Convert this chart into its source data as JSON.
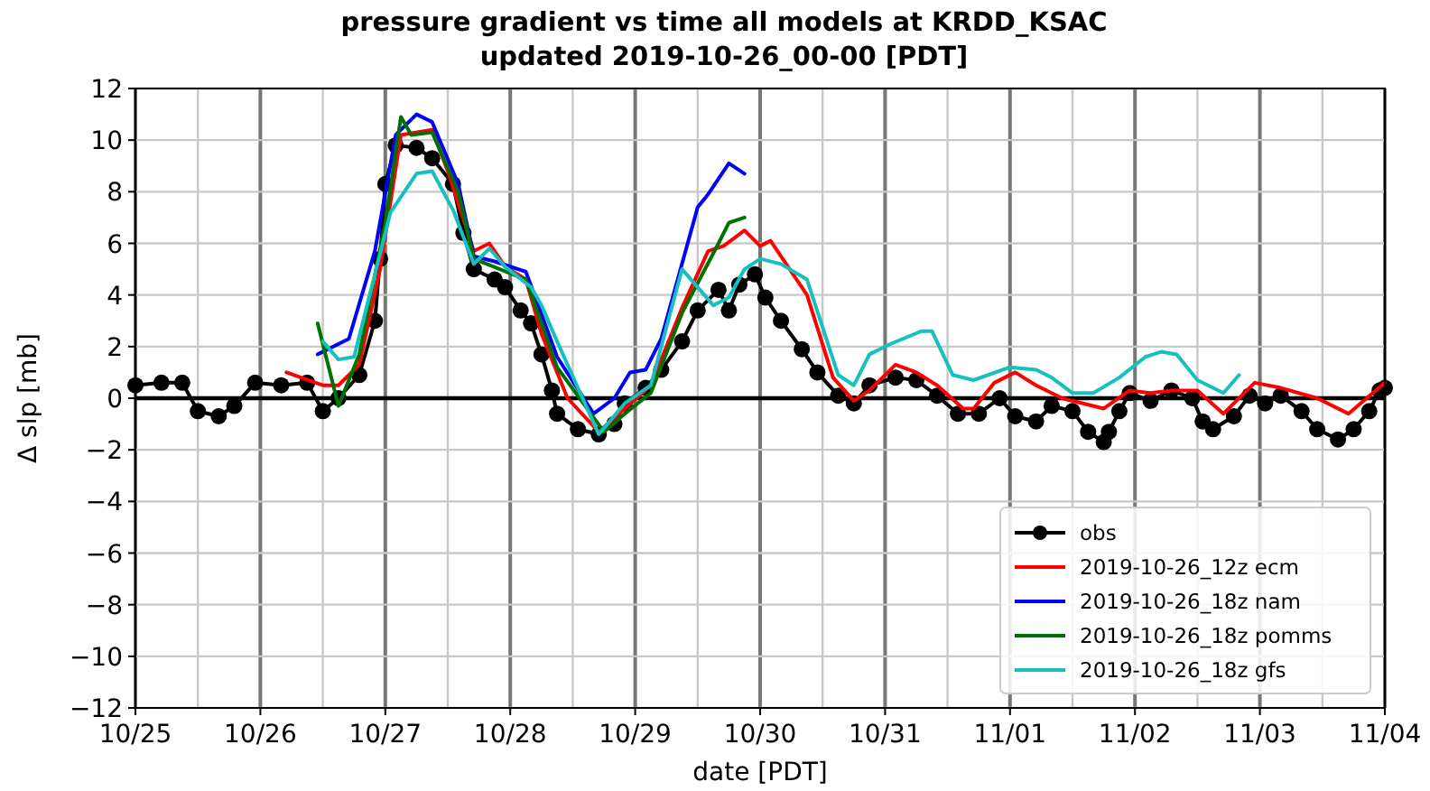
{
  "chart_data": {
    "type": "line",
    "title": "pressure gradient vs time all models at KRDD_KSAC",
    "subtitle": "updated 2019-10-26_00-00 [PDT]",
    "xlabel": "date [PDT]",
    "ylabel": "Δ slp [mb]",
    "xlim": [
      "2019-10-25T00:00",
      "2019-11-04T00:00"
    ],
    "xticks": [
      {
        "value": "2019-10-25T00:00",
        "label": "10/25"
      },
      {
        "value": "2019-10-25T12:00",
        "label": null
      },
      {
        "value": "2019-10-26T00:00",
        "label": "10/26"
      },
      {
        "value": "2019-10-26T12:00",
        "label": null
      },
      {
        "value": "2019-10-27T00:00",
        "label": "10/27"
      },
      {
        "value": "2019-10-27T12:00",
        "label": null
      },
      {
        "value": "2019-10-28T00:00",
        "label": "10/28"
      },
      {
        "value": "2019-10-28T12:00",
        "label": null
      },
      {
        "value": "2019-10-29T00:00",
        "label": "10/29"
      },
      {
        "value": "2019-10-29T12:00",
        "label": null
      },
      {
        "value": "2019-10-30T00:00",
        "label": "10/30"
      },
      {
        "value": "2019-10-30T12:00",
        "label": null
      },
      {
        "value": "2019-10-31T00:00",
        "label": "10/31"
      },
      {
        "value": "2019-10-31T12:00",
        "label": null
      },
      {
        "value": "2019-11-01T00:00",
        "label": "11/01"
      },
      {
        "value": "2019-11-01T12:00",
        "label": null
      },
      {
        "value": "2019-11-02T00:00",
        "label": "11/02"
      },
      {
        "value": "2019-11-02T12:00",
        "label": null
      },
      {
        "value": "2019-11-03T00:00",
        "label": "11/03"
      },
      {
        "value": "2019-11-03T12:00",
        "label": null
      },
      {
        "value": "2019-11-04T00:00",
        "label": "11/04"
      }
    ],
    "ylim": [
      -12,
      12
    ],
    "yticks": [
      -12,
      -10,
      -8,
      -6,
      -4,
      -2,
      0,
      2,
      4,
      6,
      8,
      10,
      12
    ],
    "grid": true,
    "legend": "bottom right",
    "ref_lines": [
      {
        "axis": "y",
        "value": 0,
        "color": "#000000"
      }
    ],
    "series": [
      {
        "name": "obs",
        "color": "#000000",
        "marker": "circle",
        "x": [
          "2019-10-25T00:00",
          "2019-10-25T05:00",
          "2019-10-25T09:00",
          "2019-10-25T12:00",
          "2019-10-25T16:00",
          "2019-10-25T19:00",
          "2019-10-25T23:00",
          "2019-10-26T04:00",
          "2019-10-26T09:00",
          "2019-10-26T12:00",
          "2019-10-26T15:00",
          "2019-10-26T19:00",
          "2019-10-26T22:00",
          "2019-10-26T23:00",
          "2019-10-27T00:00",
          "2019-10-27T02:00",
          "2019-10-27T06:00",
          "2019-10-27T09:00",
          "2019-10-27T13:00",
          "2019-10-27T15:00",
          "2019-10-27T17:00",
          "2019-10-27T21:00",
          "2019-10-27T23:00",
          "2019-10-28T02:00",
          "2019-10-28T04:00",
          "2019-10-28T06:00",
          "2019-10-28T08:00",
          "2019-10-28T09:00",
          "2019-10-28T13:00",
          "2019-10-28T17:00",
          "2019-10-28T20:00",
          "2019-10-28T22:00",
          "2019-10-29T02:00",
          "2019-10-29T05:00",
          "2019-10-29T09:00",
          "2019-10-29T12:00",
          "2019-10-29T16:00",
          "2019-10-29T18:00",
          "2019-10-29T20:00",
          "2019-10-29T23:00",
          "2019-10-30T01:00",
          "2019-10-30T04:00",
          "2019-10-30T08:00",
          "2019-10-30T11:00",
          "2019-10-30T15:00",
          "2019-10-30T18:00",
          "2019-10-30T21:00",
          "2019-10-31T02:00",
          "2019-10-31T06:00",
          "2019-10-31T10:00",
          "2019-10-31T14:00",
          "2019-10-31T18:00",
          "2019-10-31T22:00",
          "2019-11-01T01:00",
          "2019-11-01T05:00",
          "2019-11-01T08:00",
          "2019-11-01T12:00",
          "2019-11-01T15:00",
          "2019-11-01T18:00",
          "2019-11-01T19:00",
          "2019-11-01T21:00",
          "2019-11-01T23:00",
          "2019-11-02T03:00",
          "2019-11-02T07:00",
          "2019-11-02T11:00",
          "2019-11-02T13:00",
          "2019-11-02T15:00",
          "2019-11-02T19:00",
          "2019-11-02T22:00",
          "2019-11-03T01:00",
          "2019-11-03T04:00",
          "2019-11-03T08:00",
          "2019-11-03T11:00",
          "2019-11-03T15:00",
          "2019-11-03T18:00",
          "2019-11-03T21:00",
          "2019-11-03T23:00",
          "2019-11-04T00:00"
        ],
        "values": [
          0.5,
          0.6,
          0.6,
          -0.5,
          -0.7,
          -0.3,
          0.6,
          0.5,
          0.6,
          -0.5,
          0.0,
          0.9,
          3.0,
          5.4,
          8.3,
          9.8,
          9.7,
          9.3,
          8.3,
          6.4,
          5.0,
          4.6,
          4.3,
          3.4,
          2.9,
          1.7,
          0.3,
          -0.6,
          -1.2,
          -1.4,
          -1.0,
          -0.2,
          0.4,
          1.1,
          2.2,
          3.4,
          4.2,
          3.4,
          4.4,
          4.8,
          3.9,
          3.0,
          1.9,
          1.0,
          0.1,
          -0.2,
          0.5,
          0.8,
          0.7,
          0.1,
          -0.6,
          -0.6,
          0.0,
          -0.7,
          -0.9,
          -0.3,
          -0.5,
          -1.3,
          -1.7,
          -1.3,
          -0.5,
          0.2,
          -0.1,
          0.3,
          0.0,
          -0.9,
          -1.2,
          -0.7,
          0.1,
          -0.2,
          0.1,
          -0.5,
          -1.2,
          -1.6,
          -1.2,
          -0.5,
          0.3,
          0.4
        ]
      },
      {
        "name": "2019-10-26_12z ecm",
        "color": "#ff0000",
        "marker": "none",
        "x": [
          "2019-10-26T05:00",
          "2019-10-26T12:00",
          "2019-10-26T15:00",
          "2019-10-26T19:00",
          "2019-10-26T23:00",
          "2019-10-27T03:00",
          "2019-10-27T09:00",
          "2019-10-27T12:00",
          "2019-10-27T17:00",
          "2019-10-27T20:00",
          "2019-10-27T23:00",
          "2019-10-28T03:00",
          "2019-10-28T06:00",
          "2019-10-28T11:00",
          "2019-10-28T17:00",
          "2019-10-28T22:00",
          "2019-10-29T03:00",
          "2019-10-29T09:00",
          "2019-10-29T14:00",
          "2019-10-29T17:00",
          "2019-10-29T21:00",
          "2019-10-30T00:00",
          "2019-10-30T02:00",
          "2019-10-30T09:00",
          "2019-10-30T14:00",
          "2019-10-30T18:00",
          "2019-10-30T21:00",
          "2019-10-31T02:00",
          "2019-10-31T06:00",
          "2019-10-31T10:00",
          "2019-10-31T15:00",
          "2019-10-31T17:00",
          "2019-10-31T21:00",
          "2019-11-01T01:00",
          "2019-11-01T05:00",
          "2019-11-01T10:00",
          "2019-11-01T18:00",
          "2019-11-01T23:00",
          "2019-11-02T03:00",
          "2019-11-02T07:00",
          "2019-11-02T12:00",
          "2019-11-02T17:00",
          "2019-11-02T23:00",
          "2019-11-03T04:00",
          "2019-11-03T11:00",
          "2019-11-03T17:00",
          "2019-11-04T00:00"
        ],
        "values": [
          1.0,
          0.5,
          0.5,
          1.3,
          5.0,
          10.2,
          10.4,
          8.8,
          5.7,
          6.0,
          5.1,
          4.6,
          2.5,
          0.0,
          -1.3,
          -0.4,
          0.5,
          3.5,
          5.7,
          5.9,
          6.5,
          5.9,
          6.1,
          4.0,
          0.8,
          -0.1,
          0.3,
          1.3,
          1.0,
          0.5,
          -0.4,
          -0.4,
          0.6,
          1.0,
          0.5,
          0.0,
          -0.4,
          0.3,
          0.2,
          0.3,
          0.3,
          -0.6,
          0.6,
          0.4,
          0.0,
          -0.6,
          0.6
        ]
      },
      {
        "name": "2019-10-26_18z nam",
        "color": "#0000ff",
        "marker": "none",
        "x": [
          "2019-10-26T11:00",
          "2019-10-26T17:00",
          "2019-10-26T22:00",
          "2019-10-27T02:00",
          "2019-10-27T06:00",
          "2019-10-27T09:00",
          "2019-10-27T14:00",
          "2019-10-27T17:00",
          "2019-10-27T21:00",
          "2019-10-28T03:00",
          "2019-10-28T09:00",
          "2019-10-28T16:00",
          "2019-10-28T20:00",
          "2019-10-28T23:00",
          "2019-10-29T02:00",
          "2019-10-29T05:00",
          "2019-10-29T12:00",
          "2019-10-29T14:00",
          "2019-10-29T18:00",
          "2019-10-29T21:00"
        ],
        "values": [
          1.7,
          2.3,
          5.7,
          10.2,
          11.0,
          10.7,
          8.3,
          5.5,
          5.3,
          4.9,
          1.6,
          -0.6,
          0.0,
          1.0,
          1.1,
          2.3,
          7.4,
          7.9,
          9.1,
          8.7
        ]
      },
      {
        "name": "2019-10-26_18z pomms",
        "color": "#007000",
        "marker": "none",
        "x": [
          "2019-10-26T11:00",
          "2019-10-26T15:00",
          "2019-10-26T19:00",
          "2019-10-27T00:00",
          "2019-10-27T03:00",
          "2019-10-27T05:00",
          "2019-10-27T09:00",
          "2019-10-27T14:00",
          "2019-10-27T17:00",
          "2019-10-28T03:00",
          "2019-10-28T09:00",
          "2019-10-28T18:00",
          "2019-10-28T22:00",
          "2019-10-29T03:00",
          "2019-10-29T09:00",
          "2019-10-29T16:00",
          "2019-10-29T18:00",
          "2019-10-29T21:00"
        ],
        "values": [
          2.9,
          -0.3,
          1.7,
          6.8,
          10.9,
          10.2,
          10.3,
          8.0,
          5.4,
          4.6,
          1.2,
          -1.3,
          -0.6,
          0.2,
          3.3,
          6.0,
          6.8,
          7.0
        ]
      },
      {
        "name": "2019-10-26_18z gfs",
        "color": "#17bfbf",
        "marker": "none",
        "x": [
          "2019-10-26T12:00",
          "2019-10-26T15:00",
          "2019-10-26T18:00",
          "2019-10-27T01:00",
          "2019-10-27T06:00",
          "2019-10-27T09:00",
          "2019-10-27T13:00",
          "2019-10-27T17:00",
          "2019-10-27T20:00",
          "2019-10-27T23:00",
          "2019-10-28T04:00",
          "2019-10-28T06:00",
          "2019-10-28T09:00",
          "2019-10-28T17:00",
          "2019-10-28T22:00",
          "2019-10-29T03:00",
          "2019-10-29T09:00",
          "2019-10-29T15:00",
          "2019-10-29T18:00",
          "2019-10-29T21:00",
          "2019-10-30T00:00",
          "2019-10-30T04:00",
          "2019-10-30T09:00",
          "2019-10-30T15:00",
          "2019-10-30T18:00",
          "2019-10-30T21:00",
          "2019-10-31T01:00",
          "2019-10-31T07:00",
          "2019-10-31T09:00",
          "2019-10-31T13:00",
          "2019-10-31T17:00",
          "2019-11-01T00:00",
          "2019-11-01T05:00",
          "2019-11-01T08:00",
          "2019-11-01T12:00",
          "2019-11-01T16:00",
          "2019-11-01T21:00",
          "2019-11-02T02:00",
          "2019-11-02T05:00",
          "2019-11-02T08:00",
          "2019-11-02T12:00",
          "2019-11-02T17:00",
          "2019-11-02T20:00"
        ],
        "values": [
          2.2,
          1.5,
          1.6,
          7.2,
          8.7,
          8.8,
          7.3,
          5.2,
          5.8,
          5.1,
          4.3,
          3.6,
          2.2,
          -1.4,
          -0.2,
          0.5,
          5.0,
          3.6,
          3.9,
          5.0,
          5.4,
          5.2,
          4.6,
          0.9,
          0.5,
          1.7,
          2.1,
          2.6,
          2.6,
          0.9,
          0.7,
          1.2,
          1.1,
          0.8,
          0.2,
          0.2,
          0.8,
          1.6,
          1.8,
          1.7,
          0.7,
          0.2,
          0.9
        ]
      }
    ]
  }
}
